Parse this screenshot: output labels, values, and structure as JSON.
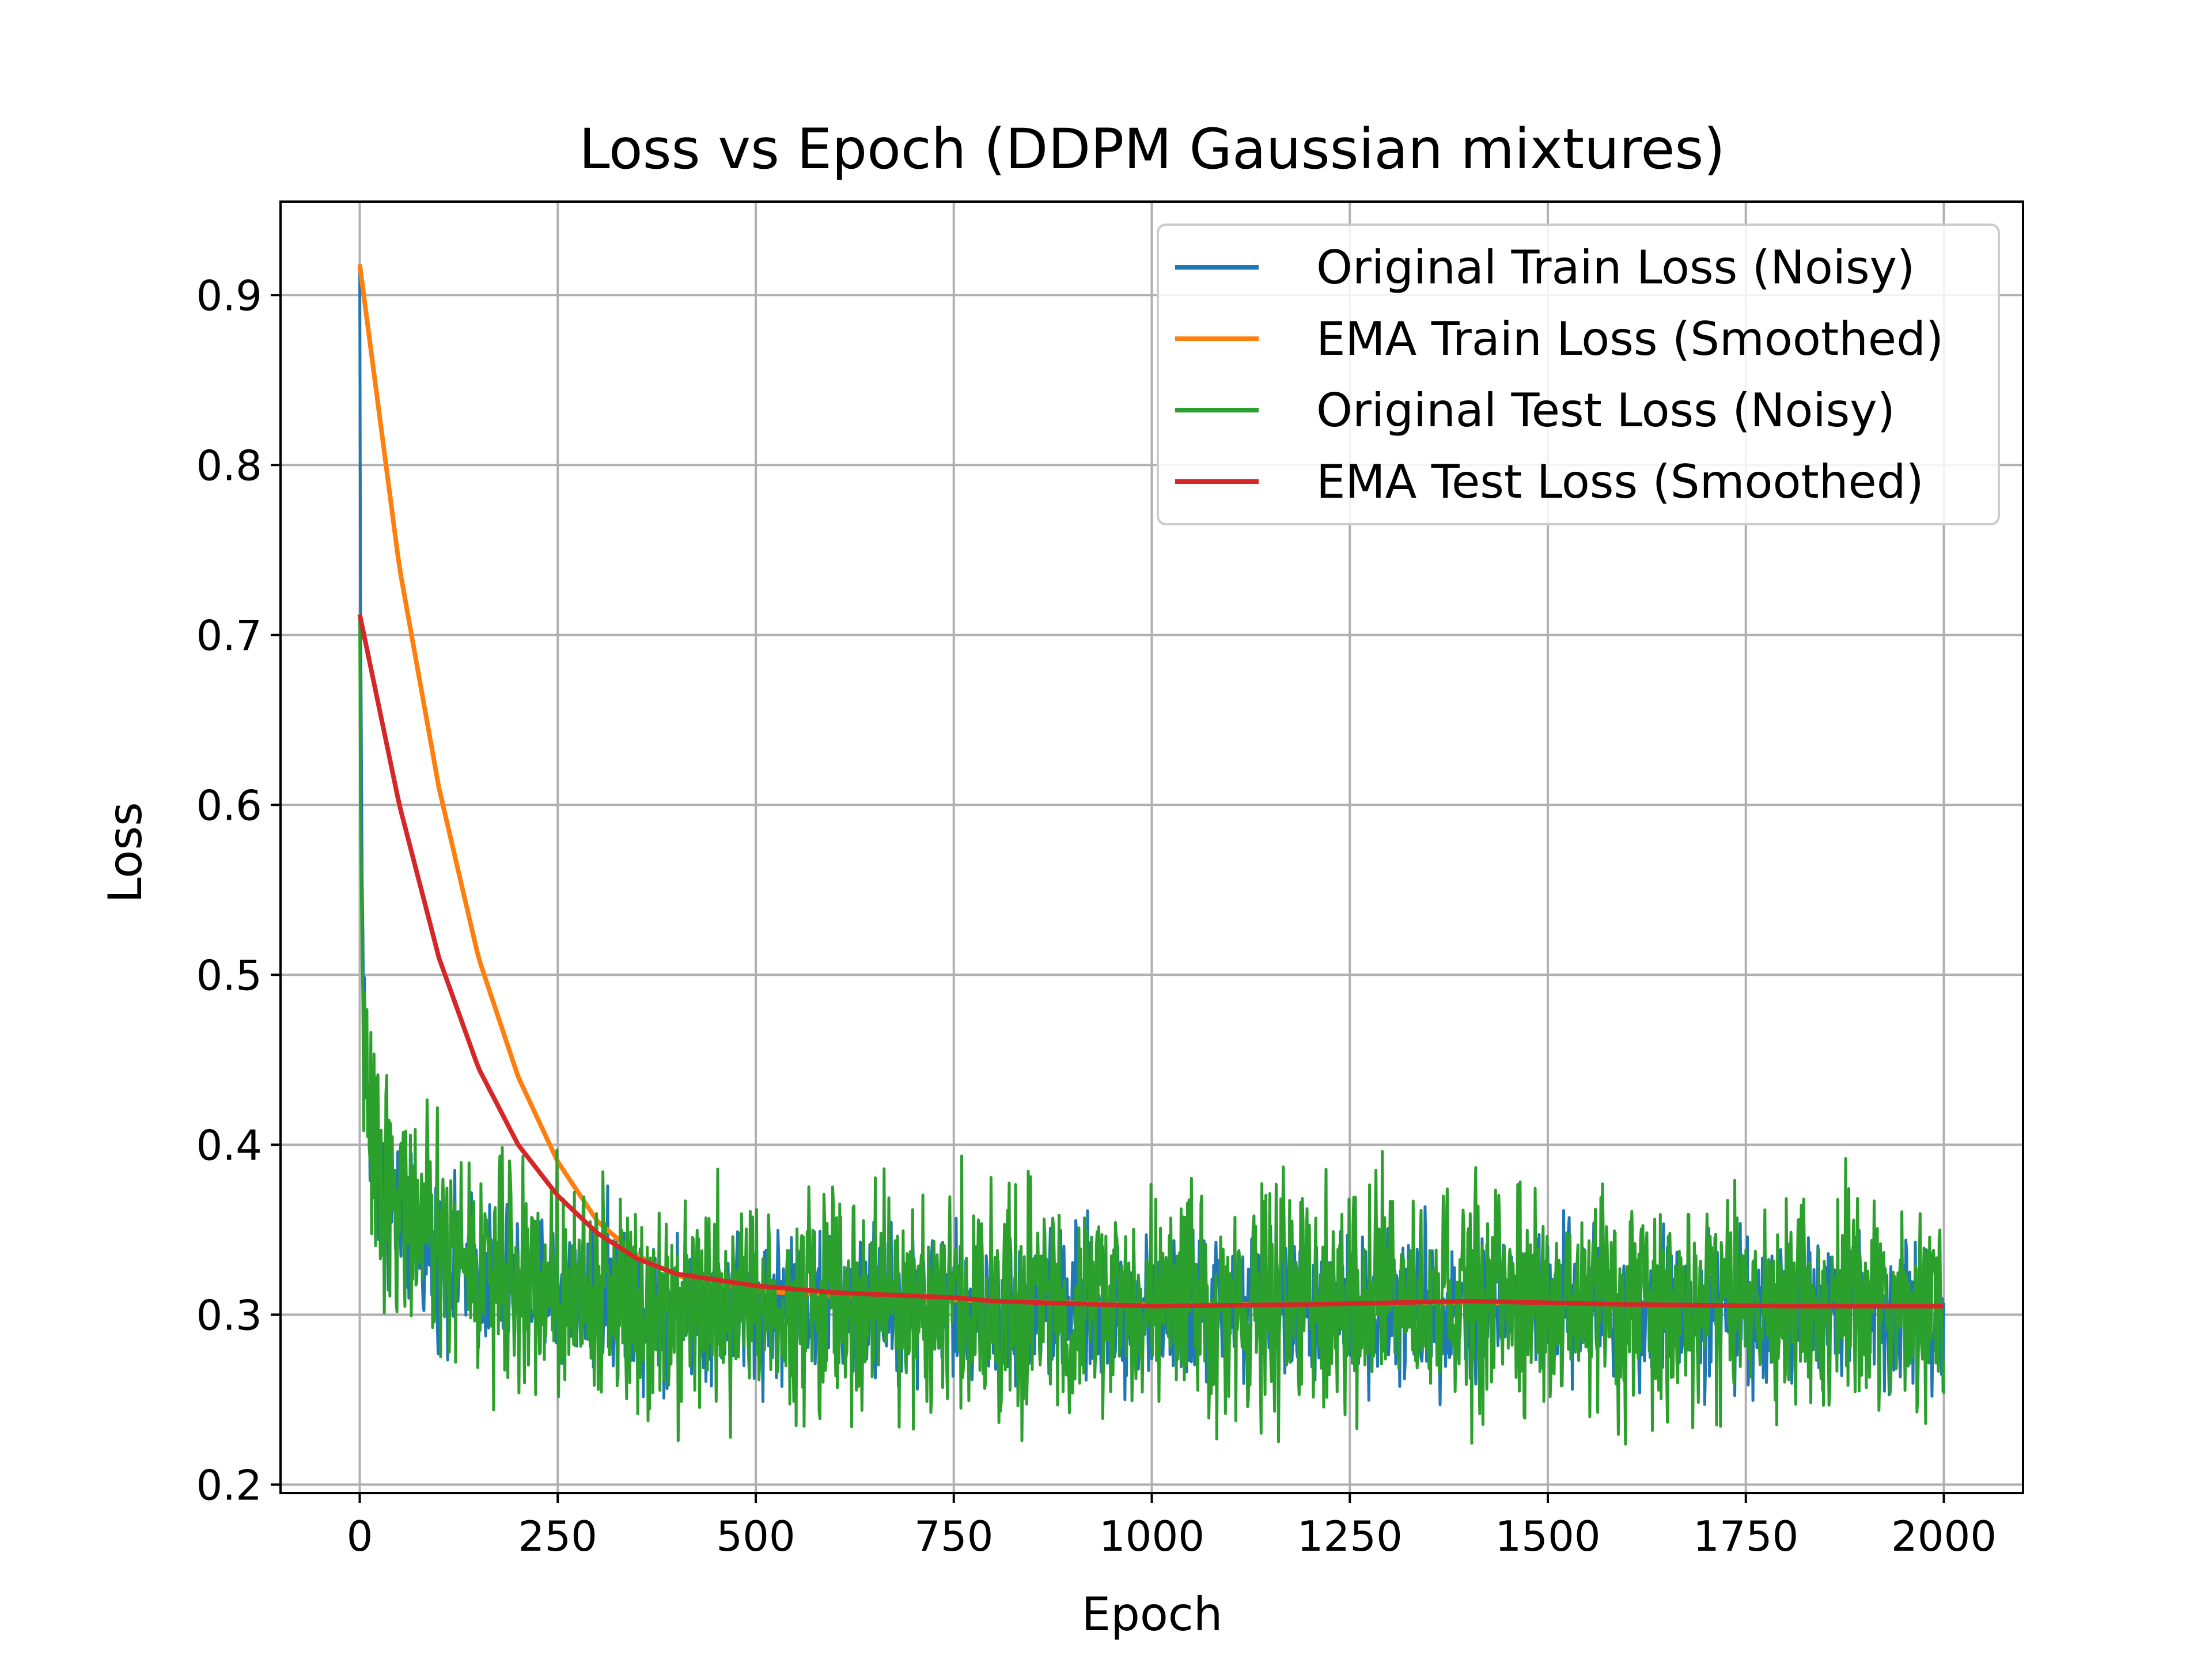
{
  "chart_data": {
    "type": "line",
    "title": "Loss vs Epoch (DDPM Gaussian mixtures)",
    "xlabel": "Epoch",
    "ylabel": "Loss",
    "xlim": [
      -100,
      2100
    ],
    "ylim": [
      0.195,
      0.955
    ],
    "x_ticks": [
      0,
      250,
      500,
      750,
      1000,
      1250,
      1500,
      1750,
      2000
    ],
    "x_tick_labels": [
      "0",
      "250",
      "500",
      "750",
      "1000",
      "1250",
      "1500",
      "1750",
      "2000"
    ],
    "y_ticks": [
      0.2,
      0.3,
      0.4,
      0.5,
      0.6,
      0.7,
      0.8,
      0.9
    ],
    "y_tick_labels": [
      "0.2",
      "0.3",
      "0.4",
      "0.5",
      "0.6",
      "0.7",
      "0.8",
      "0.9"
    ],
    "grid": true,
    "legend_position": "top-right",
    "series": [
      {
        "name": "Original Train Loss (Noisy)",
        "color": "#1f77b4",
        "noisy": true,
        "x": [
          0,
          1,
          3,
          8,
          15,
          30,
          60,
          100,
          150,
          200,
          300,
          400,
          500,
          700,
          1000,
          1300,
          1600,
          2000
        ],
        "y": [
          0.918,
          0.72,
          0.55,
          0.43,
          0.39,
          0.37,
          0.35,
          0.335,
          0.325,
          0.318,
          0.312,
          0.309,
          0.307,
          0.305,
          0.304,
          0.305,
          0.305,
          0.303
        ],
        "amplitude": 0.022
      },
      {
        "name": "EMA Train Loss (Smoothed)",
        "color": "#ff7f0e",
        "noisy": false,
        "x": [
          0,
          50,
          100,
          150,
          200,
          250,
          300,
          350,
          400,
          500,
          600,
          700,
          800,
          1000,
          1200,
          1400,
          1600,
          1800,
          2000
        ],
        "y": [
          0.918,
          0.74,
          0.61,
          0.51,
          0.44,
          0.39,
          0.355,
          0.335,
          0.323,
          0.314,
          0.311,
          0.309,
          0.308,
          0.306,
          0.306,
          0.307,
          0.306,
          0.305,
          0.305
        ]
      },
      {
        "name": "Original Test Loss (Noisy)",
        "color": "#2ca02c",
        "noisy": true,
        "x": [
          0,
          1,
          3,
          8,
          15,
          30,
          60,
          100,
          150,
          200,
          300,
          400,
          500,
          700,
          1000,
          1300,
          1600,
          2000
        ],
        "y": [
          0.712,
          0.6,
          0.5,
          0.43,
          0.4,
          0.38,
          0.36,
          0.34,
          0.328,
          0.32,
          0.314,
          0.31,
          0.308,
          0.306,
          0.305,
          0.306,
          0.306,
          0.304
        ],
        "amplitude": 0.032
      },
      {
        "name": "EMA Test Loss (Smoothed)",
        "color": "#d62728",
        "noisy": false,
        "x": [
          0,
          50,
          100,
          150,
          200,
          250,
          300,
          350,
          400,
          500,
          600,
          700,
          750,
          800,
          1000,
          1200,
          1400,
          1600,
          1800,
          2000
        ],
        "y": [
          0.712,
          0.6,
          0.51,
          0.445,
          0.4,
          0.37,
          0.348,
          0.333,
          0.324,
          0.317,
          0.313,
          0.311,
          0.31,
          0.308,
          0.305,
          0.306,
          0.308,
          0.306,
          0.305,
          0.305
        ]
      }
    ]
  }
}
